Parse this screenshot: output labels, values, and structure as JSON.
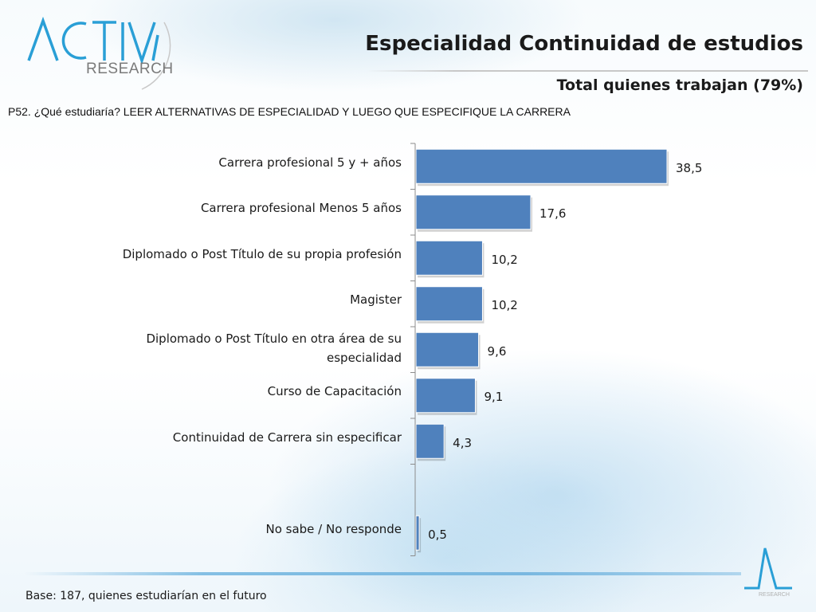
{
  "brand": {
    "logo_text": "ACTIVA",
    "logo_subtext": "RESEARCH",
    "accent": "#2a9fd6"
  },
  "header": {
    "title": "Especialidad Continuidad de estudios",
    "subtitle": "Total quienes trabajan (79%)",
    "question": "P52. ¿Qué estudiaría? LEER ALTERNATIVAS DE ESPECIALIDAD Y LUEGO QUE ESPECIFIQUE LA CARRERA"
  },
  "footer": {
    "base_note": "Base: 187, quienes estudiarían en el futuro"
  },
  "chart_data": {
    "type": "bar",
    "orientation": "horizontal",
    "categories": [
      "Carrera profesional 5 y + años",
      "Carrera profesional Menos 5 años",
      "Diplomado o Post Título de su propia profesión",
      "Magister",
      "Diplomado o Post Título en otra área de su especialidad",
      "Curso de Capacitación",
      "Continuidad de Carrera sin especificar",
      "",
      "No sabe / No responde"
    ],
    "values": [
      38.5,
      17.6,
      10.2,
      10.2,
      9.6,
      9.1,
      4.3,
      null,
      0.5
    ],
    "value_labels": [
      "38,5",
      "17,6",
      "10,2",
      "10,2",
      "9,6",
      "9,1",
      "4,3",
      "",
      "0,5"
    ],
    "bar_color": "#4f81bd",
    "xlim": [
      0,
      40
    ],
    "grid": false,
    "legend": "none"
  }
}
